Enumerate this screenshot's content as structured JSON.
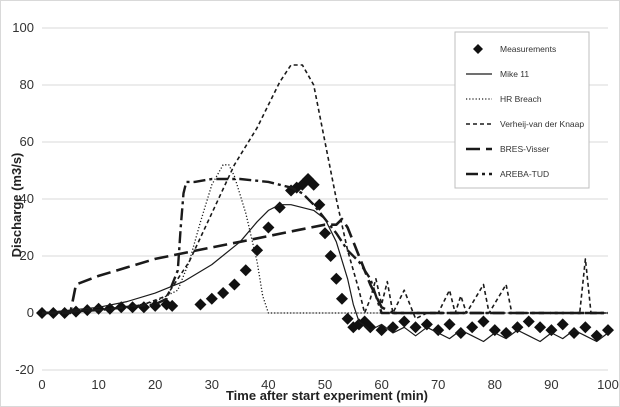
{
  "chart_data": {
    "type": "line",
    "xlabel": "Time after start experiment (min)",
    "ylabel": "Discharge (m3/s)",
    "xlim": [
      0,
      100
    ],
    "ylim": [
      -20,
      100
    ],
    "x_ticks": [
      "0",
      "10",
      "20",
      "30",
      "40",
      "50",
      "60",
      "70",
      "80",
      "90",
      "100"
    ],
    "y_ticks": [
      "-20",
      "0",
      "20",
      "40",
      "60",
      "80",
      "100"
    ],
    "grid": true,
    "legend_position": "top-right",
    "series": [
      {
        "name": "Measurements",
        "style": "diamond-markers",
        "points": [
          [
            0,
            0
          ],
          [
            2,
            0
          ],
          [
            4,
            0
          ],
          [
            6,
            0.5
          ],
          [
            8,
            1
          ],
          [
            10,
            1.5
          ],
          [
            12,
            1.5
          ],
          [
            14,
            2
          ],
          [
            16,
            2
          ],
          [
            18,
            2
          ],
          [
            20,
            2.5
          ],
          [
            22,
            3
          ],
          [
            23,
            2.5
          ],
          [
            28,
            3
          ],
          [
            30,
            5
          ],
          [
            32,
            7
          ],
          [
            34,
            10
          ],
          [
            36,
            15
          ],
          [
            38,
            22
          ],
          [
            40,
            30
          ],
          [
            42,
            37
          ],
          [
            44,
            43
          ],
          [
            45,
            44
          ],
          [
            46,
            45
          ],
          [
            47,
            47
          ],
          [
            48,
            45
          ],
          [
            49,
            38
          ],
          [
            50,
            28
          ],
          [
            51,
            20
          ],
          [
            52,
            12
          ],
          [
            53,
            5
          ],
          [
            54,
            -2
          ],
          [
            55,
            -5
          ],
          [
            56,
            -4
          ],
          [
            57,
            -3
          ],
          [
            58,
            -5
          ],
          [
            60,
            -6
          ],
          [
            62,
            -5
          ],
          [
            64,
            -3
          ],
          [
            66,
            -5
          ],
          [
            68,
            -4
          ],
          [
            70,
            -6
          ],
          [
            72,
            -4
          ],
          [
            74,
            -7
          ],
          [
            76,
            -5
          ],
          [
            78,
            -3
          ],
          [
            80,
            -6
          ],
          [
            82,
            -7
          ],
          [
            84,
            -5
          ],
          [
            86,
            -3
          ],
          [
            88,
            -5
          ],
          [
            90,
            -6
          ],
          [
            92,
            -4
          ],
          [
            94,
            -7
          ],
          [
            96,
            -5
          ],
          [
            98,
            -8
          ],
          [
            100,
            -6
          ]
        ]
      },
      {
        "name": "Mike 11",
        "style": "solid",
        "points": [
          [
            0,
            0
          ],
          [
            5,
            1
          ],
          [
            10,
            2
          ],
          [
            15,
            4
          ],
          [
            20,
            7
          ],
          [
            25,
            11
          ],
          [
            30,
            17
          ],
          [
            35,
            25
          ],
          [
            38,
            32
          ],
          [
            40,
            36
          ],
          [
            42,
            38
          ],
          [
            44,
            38
          ],
          [
            46,
            37
          ],
          [
            48,
            36
          ],
          [
            50,
            33
          ],
          [
            52,
            25
          ],
          [
            54,
            12
          ],
          [
            55,
            3
          ],
          [
            56,
            -3
          ],
          [
            58,
            -6
          ],
          [
            60,
            -4
          ],
          [
            62,
            -7
          ],
          [
            64,
            -5
          ],
          [
            66,
            -8
          ],
          [
            68,
            -5
          ],
          [
            70,
            -7
          ],
          [
            72,
            -9
          ],
          [
            74,
            -6
          ],
          [
            76,
            -8
          ],
          [
            78,
            -10
          ],
          [
            80,
            -7
          ],
          [
            82,
            -9
          ],
          [
            84,
            -6
          ],
          [
            86,
            -8
          ],
          [
            88,
            -10
          ],
          [
            90,
            -7
          ],
          [
            92,
            -9
          ],
          [
            94,
            -6
          ],
          [
            96,
            -8
          ],
          [
            98,
            -10
          ],
          [
            100,
            -7
          ]
        ]
      },
      {
        "name": "HR Breach",
        "style": "dotted",
        "points": [
          [
            0,
            0
          ],
          [
            10,
            1
          ],
          [
            15,
            2
          ],
          [
            20,
            4
          ],
          [
            24,
            8
          ],
          [
            26,
            18
          ],
          [
            28,
            32
          ],
          [
            30,
            45
          ],
          [
            32,
            52
          ],
          [
            33,
            52
          ],
          [
            34,
            48
          ],
          [
            36,
            35
          ],
          [
            38,
            18
          ],
          [
            39,
            6
          ],
          [
            40,
            0
          ],
          [
            45,
            0
          ],
          [
            50,
            0
          ],
          [
            60,
            0
          ],
          [
            70,
            0
          ],
          [
            80,
            0
          ],
          [
            90,
            0
          ],
          [
            100,
            0
          ]
        ]
      },
      {
        "name": "Verheij-van der Knaap",
        "style": "short-dash",
        "points": [
          [
            0,
            0
          ],
          [
            10,
            1
          ],
          [
            18,
            3
          ],
          [
            22,
            6
          ],
          [
            26,
            18
          ],
          [
            30,
            35
          ],
          [
            34,
            52
          ],
          [
            38,
            65
          ],
          [
            40,
            73
          ],
          [
            42,
            81
          ],
          [
            44,
            87
          ],
          [
            46,
            87
          ],
          [
            48,
            80
          ],
          [
            50,
            60
          ],
          [
            52,
            40
          ],
          [
            54,
            22
          ],
          [
            56,
            8
          ],
          [
            57,
            0
          ],
          [
            58,
            5
          ],
          [
            59,
            12
          ],
          [
            60,
            3
          ],
          [
            61,
            11
          ],
          [
            62,
            0
          ],
          [
            64,
            8
          ],
          [
            66,
            -2
          ],
          [
            68,
            0
          ],
          [
            70,
            0
          ],
          [
            72,
            8
          ],
          [
            73,
            0
          ],
          [
            74,
            6
          ],
          [
            75,
            0
          ],
          [
            78,
            10
          ],
          [
            79,
            0
          ],
          [
            82,
            10
          ],
          [
            83,
            0
          ],
          [
            86,
            0
          ],
          [
            90,
            0
          ],
          [
            95,
            0
          ],
          [
            96,
            19
          ],
          [
            97,
            0
          ],
          [
            100,
            0
          ]
        ]
      },
      {
        "name": "BRES-Visser",
        "style": "long-dash",
        "points": [
          [
            0,
            0
          ],
          [
            5,
            0
          ],
          [
            6,
            10
          ],
          [
            10,
            13
          ],
          [
            15,
            16
          ],
          [
            20,
            19
          ],
          [
            25,
            21
          ],
          [
            30,
            23
          ],
          [
            35,
            25
          ],
          [
            40,
            27
          ],
          [
            45,
            29
          ],
          [
            50,
            31
          ],
          [
            52,
            31
          ],
          [
            53,
            33
          ],
          [
            54,
            30
          ],
          [
            56,
            20
          ],
          [
            58,
            10
          ],
          [
            60,
            2
          ],
          [
            62,
            0
          ],
          [
            70,
            0
          ],
          [
            80,
            0
          ],
          [
            90,
            0
          ],
          [
            100,
            0
          ]
        ]
      },
      {
        "name": "AREBA-TUD",
        "style": "dash-dot",
        "points": [
          [
            0,
            0
          ],
          [
            10,
            1
          ],
          [
            20,
            3
          ],
          [
            22,
            5
          ],
          [
            23,
            10
          ],
          [
            24,
            15
          ],
          [
            24.5,
            30
          ],
          [
            25,
            42
          ],
          [
            25.5,
            46
          ],
          [
            27,
            46
          ],
          [
            30,
            47
          ],
          [
            35,
            47
          ],
          [
            40,
            46
          ],
          [
            44,
            44
          ],
          [
            46,
            42
          ],
          [
            48,
            38
          ],
          [
            50,
            33
          ],
          [
            52,
            28
          ],
          [
            54,
            22
          ],
          [
            56,
            18
          ],
          [
            58,
            12
          ],
          [
            60,
            0
          ],
          [
            65,
            0
          ],
          [
            70,
            0
          ],
          [
            80,
            0
          ],
          [
            90,
            0
          ],
          [
            100,
            0
          ]
        ]
      }
    ]
  }
}
